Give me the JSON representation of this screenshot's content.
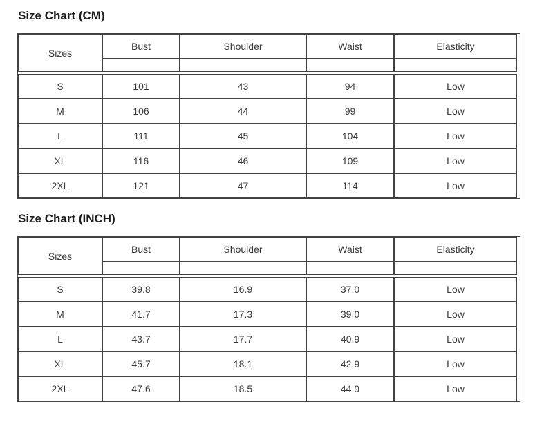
{
  "colors": {
    "border": "#424242",
    "cell_text": "#3a3a3a",
    "title_text": "#1c1c1c",
    "background": "#ffffff"
  },
  "tables": [
    {
      "title": "Size Chart (CM)",
      "columns": [
        "Sizes",
        "Bust",
        "Shoulder",
        "Waist",
        "Elasticity"
      ],
      "subheader": [
        "",
        "",
        "",
        ""
      ],
      "rows": [
        [
          "S",
          "101",
          "43",
          "94",
          "Low"
        ],
        [
          "M",
          "106",
          "44",
          "99",
          "Low"
        ],
        [
          "L",
          "111",
          "45",
          "104",
          "Low"
        ],
        [
          "XL",
          "116",
          "46",
          "109",
          "Low"
        ],
        [
          "2XL",
          "121",
          "47",
          "114",
          "Low"
        ]
      ]
    },
    {
      "title": "Size Chart (INCH)",
      "columns": [
        "Sizes",
        "Bust",
        "Shoulder",
        "Waist",
        "Elasticity"
      ],
      "subheader": [
        "",
        "",
        "",
        ""
      ],
      "rows": [
        [
          "S",
          "39.8",
          "16.9",
          "37.0",
          "Low"
        ],
        [
          "M",
          "41.7",
          "17.3",
          "39.0",
          "Low"
        ],
        [
          "L",
          "43.7",
          "17.7",
          "40.9",
          "Low"
        ],
        [
          "XL",
          "45.7",
          "18.1",
          "42.9",
          "Low"
        ],
        [
          "2XL",
          "47.6",
          "18.5",
          "44.9",
          "Low"
        ]
      ]
    }
  ]
}
